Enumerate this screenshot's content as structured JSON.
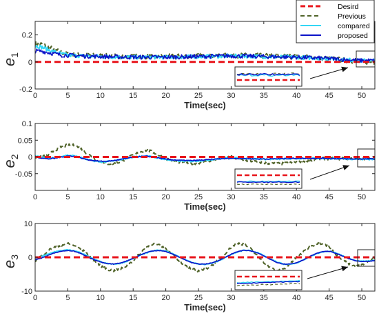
{
  "figure": {
    "colors": {
      "desired": "#e8141b",
      "previous": "#4f6228",
      "compared": "#33d6f5",
      "proposed": "#0a12c8",
      "axis": "#262626",
      "arrow": "#111111"
    }
  },
  "chart_data": [
    {
      "type": "line",
      "ylabel": "e1",
      "ylabel_main": "e",
      "ylabel_sub": "1",
      "xlabel": "Time(sec)",
      "xlim": [
        0,
        52
      ],
      "ylim": [
        -0.2,
        0.3
      ],
      "xticks": [
        0,
        5,
        10,
        15,
        20,
        25,
        30,
        35,
        40,
        45,
        50
      ],
      "xtick_labels": [
        "0",
        "5",
        "10",
        "15",
        "20",
        "25",
        "30",
        "35",
        "40",
        "45",
        "50"
      ],
      "yticks": [
        -0.2,
        0,
        0.2
      ],
      "ytick_labels": [
        "-0.2",
        "0",
        "0.2"
      ],
      "legend": {
        "placement": "top-right",
        "entries": [
          "Desird",
          "Previous",
          "compared",
          "proposed"
        ]
      },
      "inset": true,
      "series": [
        {
          "name": "Desird",
          "style": "dashed",
          "x": [
            0,
            52
          ],
          "y": [
            0,
            0
          ]
        },
        {
          "name": "Previous",
          "style": "dashed",
          "noise": 0.018,
          "x": [
            0,
            1,
            2,
            3,
            4,
            5,
            7,
            10,
            15,
            20,
            25,
            30,
            35,
            40,
            45,
            48,
            50,
            52
          ],
          "y": [
            0.14,
            0.13,
            0.11,
            0.09,
            0.07,
            0.06,
            0.05,
            0.045,
            0.04,
            0.04,
            0.045,
            0.05,
            0.045,
            0.04,
            0.025,
            0.01,
            0.0,
            0.0
          ]
        },
        {
          "name": "compared",
          "style": "solid",
          "noise": 0.014,
          "x": [
            0,
            1,
            2,
            3,
            4,
            5,
            7,
            10,
            15,
            20,
            25,
            30,
            35,
            40,
            45,
            48,
            50,
            52
          ],
          "y": [
            0.12,
            0.11,
            0.09,
            0.075,
            0.06,
            0.05,
            0.045,
            0.04,
            0.035,
            0.035,
            0.04,
            0.045,
            0.04,
            0.035,
            0.025,
            0.015,
            0.01,
            0.01
          ]
        },
        {
          "name": "proposed",
          "style": "solid",
          "noise": 0.016,
          "x": [
            0,
            1,
            2,
            3,
            4,
            5,
            7,
            10,
            15,
            20,
            25,
            30,
            35,
            40,
            45,
            48,
            50,
            52
          ],
          "y": [
            0.08,
            0.08,
            0.07,
            0.06,
            0.05,
            0.05,
            0.045,
            0.04,
            0.035,
            0.035,
            0.04,
            0.045,
            0.04,
            0.035,
            0.025,
            0.015,
            0.01,
            0.01
          ]
        }
      ]
    },
    {
      "type": "line",
      "ylabel": "e2",
      "ylabel_main": "e",
      "ylabel_sub": "2",
      "xlabel": "Time(sec)",
      "xlim": [
        0,
        52
      ],
      "ylim": [
        -0.1,
        0.1
      ],
      "xticks": [
        0,
        5,
        10,
        15,
        20,
        25,
        30,
        35,
        40,
        45,
        50
      ],
      "xtick_labels": [
        "0",
        "5",
        "10",
        "15",
        "20",
        "25",
        "30",
        "35",
        "40",
        "45",
        "50"
      ],
      "yticks": [
        -0.05,
        0,
        0.05,
        0.1
      ],
      "ytick_labels": [
        "-0.05",
        "0",
        "0.05",
        "0.1"
      ],
      "inset": true,
      "series": [
        {
          "name": "Desird",
          "style": "dashed",
          "x": [
            0,
            52
          ],
          "y": [
            0,
            0
          ]
        },
        {
          "name": "Previous",
          "style": "dashed",
          "noise": 0.004,
          "x": [
            0,
            1,
            2,
            3,
            4,
            5,
            6,
            7,
            8,
            9,
            10,
            11,
            12,
            13,
            14,
            15,
            16,
            17,
            18,
            19,
            20,
            22,
            24,
            26,
            28,
            30,
            32,
            34,
            36,
            38,
            40,
            42,
            44,
            46,
            48,
            50,
            52
          ],
          "y": [
            0.0,
            0.0,
            0.005,
            0.02,
            0.03,
            0.035,
            0.035,
            0.025,
            0.01,
            -0.005,
            -0.015,
            -0.02,
            -0.02,
            -0.015,
            -0.005,
            0.005,
            0.015,
            0.02,
            0.015,
            0.005,
            -0.005,
            -0.015,
            -0.02,
            -0.015,
            -0.005,
            0.0,
            -0.01,
            -0.015,
            -0.02,
            -0.02,
            -0.015,
            -0.01,
            -0.005,
            -0.005,
            -0.005,
            -0.005,
            -0.005
          ]
        },
        {
          "name": "compared",
          "style": "solid",
          "noise": 0.002,
          "x": [
            0,
            1,
            2,
            3,
            4,
            5,
            6,
            7,
            8,
            9,
            10,
            11,
            12,
            13,
            14,
            15,
            16,
            17,
            18,
            19,
            20,
            22,
            24,
            26,
            28,
            30,
            32,
            34,
            36,
            38,
            40,
            42,
            44,
            46,
            48,
            50,
            52
          ],
          "y": [
            0.002,
            0.0,
            -0.005,
            -0.003,
            0.002,
            0.005,
            0.003,
            -0.002,
            -0.008,
            -0.012,
            -0.015,
            -0.014,
            -0.012,
            -0.008,
            -0.004,
            0.0,
            0.002,
            0.003,
            0.0,
            -0.004,
            -0.008,
            -0.012,
            -0.013,
            -0.01,
            -0.006,
            -0.003,
            -0.004,
            -0.006,
            -0.007,
            -0.006,
            -0.005,
            -0.004,
            -0.004,
            -0.005,
            -0.006,
            -0.007,
            -0.007
          ]
        },
        {
          "name": "proposed",
          "style": "solid",
          "noise": 0.0015,
          "x": [
            0,
            1,
            2,
            3,
            4,
            5,
            6,
            7,
            8,
            9,
            10,
            11,
            12,
            13,
            14,
            15,
            16,
            17,
            18,
            19,
            20,
            22,
            24,
            26,
            28,
            30,
            32,
            34,
            36,
            38,
            40,
            42,
            44,
            46,
            48,
            50,
            52
          ],
          "y": [
            0.0,
            -0.003,
            -0.006,
            -0.004,
            0.0,
            0.003,
            0.002,
            -0.003,
            -0.008,
            -0.011,
            -0.013,
            -0.013,
            -0.011,
            -0.008,
            -0.004,
            -0.001,
            0.001,
            0.002,
            0.0,
            -0.003,
            -0.007,
            -0.01,
            -0.011,
            -0.009,
            -0.006,
            -0.004,
            -0.005,
            -0.006,
            -0.006,
            -0.005,
            -0.004,
            -0.004,
            -0.004,
            -0.005,
            -0.006,
            -0.006,
            -0.006
          ]
        }
      ]
    },
    {
      "type": "line",
      "ylabel": "e3",
      "ylabel_main": "e",
      "ylabel_sub": "3",
      "xlabel": "Time(sec)",
      "xlim": [
        0,
        52
      ],
      "ylim": [
        -10,
        10
      ],
      "xticks": [
        0,
        5,
        10,
        15,
        20,
        25,
        30,
        35,
        40,
        45,
        50
      ],
      "xtick_labels": [
        "0",
        "5",
        "10",
        "15",
        "20",
        "25",
        "30",
        "35",
        "40",
        "45",
        "50"
      ],
      "yticks": [
        -10,
        0,
        10
      ],
      "ytick_labels": [
        "-10",
        "0",
        "10"
      ],
      "inset": true,
      "series": [
        {
          "name": "Desird",
          "style": "dashed",
          "x": [
            0,
            52
          ],
          "y": [
            0,
            0
          ]
        },
        {
          "name": "Previous",
          "style": "dashed",
          "noise": 0.35,
          "x": [
            0,
            1,
            2,
            3,
            4,
            5,
            6,
            7,
            8,
            9,
            10,
            11,
            12,
            13,
            14,
            15,
            16,
            17,
            18,
            19,
            20,
            21,
            22,
            23,
            24,
            25,
            26,
            27,
            28,
            29,
            30,
            31,
            32,
            33,
            34,
            35,
            36,
            37,
            38,
            39,
            40,
            41,
            42,
            43,
            44,
            45,
            46,
            47,
            48,
            49,
            50,
            51,
            52
          ],
          "y": [
            -1,
            0.5,
            2,
            3,
            3.5,
            4.2,
            3.5,
            2.5,
            1,
            -1,
            -2.5,
            -3.5,
            -4,
            -3.5,
            -2.5,
            -1,
            1,
            3,
            4,
            3.5,
            2.5,
            1,
            -1,
            -2.5,
            -3.5,
            -4,
            -3.5,
            -2.5,
            -1,
            1,
            3,
            4.2,
            3.8,
            2.5,
            0.5,
            -1.5,
            -3,
            -4,
            -3.5,
            -2,
            0,
            1.5,
            3,
            4,
            4.2,
            3,
            1,
            -0.5,
            -2,
            -2.8,
            -2.2,
            -1,
            -0.5
          ]
        },
        {
          "name": "compared",
          "style": "solid",
          "noise": 0.12,
          "x": [
            0,
            1,
            2,
            3,
            4,
            5,
            6,
            7,
            8,
            9,
            10,
            11,
            12,
            13,
            14,
            15,
            16,
            17,
            18,
            19,
            20,
            21,
            22,
            23,
            24,
            25,
            26,
            27,
            28,
            29,
            30,
            31,
            32,
            33,
            34,
            35,
            36,
            37,
            38,
            39,
            40,
            41,
            42,
            43,
            44,
            45,
            46,
            47,
            48,
            49,
            50,
            51,
            52
          ],
          "y": [
            -0.5,
            0.3,
            1,
            1.6,
            2,
            2.2,
            2,
            1.3,
            0.4,
            -0.5,
            -1.3,
            -1.8,
            -2,
            -1.8,
            -1.2,
            -0.4,
            0.5,
            1.3,
            1.9,
            2.1,
            1.8,
            1.1,
            0.2,
            -0.7,
            -1.5,
            -2,
            -2.1,
            -1.8,
            -1.1,
            -0.2,
            0.8,
            1.6,
            2.1,
            2,
            1.4,
            0.5,
            -0.5,
            -1.4,
            -2,
            -2.1,
            -1.7,
            -0.9,
            0.1,
            1,
            1.6,
            1.8,
            1.3,
            0.5,
            -0.3,
            -0.9,
            -1.2,
            -1.1,
            -0.9
          ]
        },
        {
          "name": "proposed",
          "style": "solid",
          "noise": 0.08,
          "x": [
            0,
            1,
            2,
            3,
            4,
            5,
            6,
            7,
            8,
            9,
            10,
            11,
            12,
            13,
            14,
            15,
            16,
            17,
            18,
            19,
            20,
            21,
            22,
            23,
            24,
            25,
            26,
            27,
            28,
            29,
            30,
            31,
            32,
            33,
            34,
            35,
            36,
            37,
            38,
            39,
            40,
            41,
            42,
            43,
            44,
            45,
            46,
            47,
            48,
            49,
            50,
            51,
            52
          ],
          "y": [
            -0.8,
            -0.2,
            0.6,
            1.3,
            1.8,
            2,
            1.8,
            1.1,
            0.2,
            -0.7,
            -1.4,
            -1.9,
            -2,
            -1.7,
            -1.1,
            -0.3,
            0.6,
            1.4,
            1.9,
            2,
            1.7,
            1,
            0.1,
            -0.8,
            -1.6,
            -2,
            -2,
            -1.7,
            -1,
            -0.1,
            0.9,
            1.7,
            2.1,
            1.9,
            1.3,
            0.4,
            -0.6,
            -1.5,
            -2,
            -2,
            -1.6,
            -0.8,
            0.2,
            1.1,
            1.7,
            1.8,
            1.2,
            0.4,
            -0.4,
            -1,
            -1.3,
            -1.2,
            -1
          ]
        }
      ]
    }
  ]
}
